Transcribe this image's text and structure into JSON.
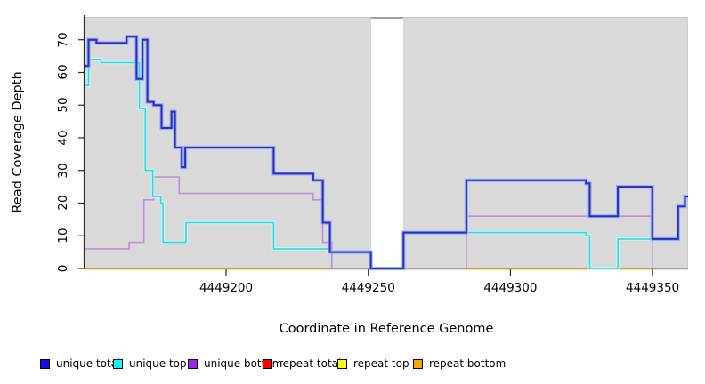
{
  "chart_data": {
    "type": "line",
    "subtype": "step-coverage",
    "title": "",
    "xlabel": "Coordinate in Reference Genome",
    "ylabel": "Read Coverage Depth",
    "xlim": [
      4449150.2,
      4449362.5
    ],
    "ylim": [
      0,
      77
    ],
    "grid": false,
    "background_color": "#d9d9d9",
    "gap_region": {
      "x_start": 4449250.9,
      "x_end": 4449262.4,
      "color": "#ffffff"
    },
    "x_ticks": [
      {
        "label": "4449200",
        "value": 4449200
      },
      {
        "label": "4449250",
        "value": 4449250
      },
      {
        "label": "4449300",
        "value": 4449300
      },
      {
        "label": "4449350",
        "value": 4449350
      }
    ],
    "y_ticks": [
      {
        "label": "0",
        "value": 0
      },
      {
        "label": "10",
        "value": 10
      },
      {
        "label": "20",
        "value": 20
      },
      {
        "label": "30",
        "value": 30
      },
      {
        "label": "40",
        "value": 40
      },
      {
        "label": "50",
        "value": 50
      },
      {
        "label": "60",
        "value": 60
      },
      {
        "label": "70",
        "value": 70
      }
    ],
    "series": [
      {
        "name": "repeat total",
        "color": "#d42a2a",
        "halo": null,
        "width": 1.3,
        "points": [
          [
            4449150.2,
            0
          ],
          [
            4449362.5,
            0
          ]
        ]
      },
      {
        "name": "repeat top",
        "color": "#f2e33c",
        "halo": null,
        "width": 1.1,
        "points": [
          [
            4449150.2,
            0
          ],
          [
            4449362.5,
            0
          ]
        ]
      },
      {
        "name": "repeat bottom",
        "color": "#ffa500",
        "halo": null,
        "width": 1.8,
        "points": [
          [
            4449150.2,
            0
          ],
          [
            4449362.5,
            0
          ]
        ]
      },
      {
        "name": "unique bottom",
        "color": "#be8fd9",
        "halo": null,
        "width": 1.6,
        "points": [
          [
            4449150.2,
            6
          ],
          [
            4449165.9,
            8
          ],
          [
            4449171.1,
            21
          ],
          [
            4449174.5,
            28
          ],
          [
            4449183.5,
            23
          ],
          [
            4449230.6,
            21
          ],
          [
            4449234.0,
            8
          ],
          [
            4449237.2,
            0
          ],
          [
            4449284.5,
            16
          ],
          [
            4449349.9,
            0
          ],
          [
            4449362.5,
            0
          ]
        ]
      },
      {
        "name": "unique top",
        "color": "#2fd9e0",
        "halo": "#c8f7f7",
        "width": 1.6,
        "points": [
          [
            4449150.2,
            56
          ],
          [
            4449151.6,
            64
          ],
          [
            4449156.0,
            63
          ],
          [
            4449169.5,
            49
          ],
          [
            4449171.6,
            30
          ],
          [
            4449174.2,
            22
          ],
          [
            4449177.0,
            20
          ],
          [
            4449177.8,
            8
          ],
          [
            4449185.9,
            14
          ],
          [
            4449216.7,
            6
          ],
          [
            4449236.0,
            5
          ],
          [
            4449250.9,
            0
          ],
          [
            4449262.4,
            11
          ],
          [
            4449326.6,
            10
          ],
          [
            4449327.9,
            0
          ],
          [
            4449337.8,
            9
          ],
          [
            4449359.0,
            19
          ],
          [
            4449361.4,
            22
          ],
          [
            4449362.5,
            22
          ]
        ]
      },
      {
        "name": "unique total",
        "color": "#2b2bc8",
        "halo": "#8fa9ec",
        "width": 2.0,
        "points": [
          [
            4449150.2,
            62
          ],
          [
            4449151.6,
            70
          ],
          [
            4449154.4,
            69
          ],
          [
            4449165.0,
            71
          ],
          [
            4449168.5,
            58
          ],
          [
            4449170.6,
            70
          ],
          [
            4449172.3,
            51
          ],
          [
            4449174.5,
            50
          ],
          [
            4449177.3,
            43
          ],
          [
            4449180.8,
            48
          ],
          [
            4449182.0,
            37
          ],
          [
            4449184.4,
            31
          ],
          [
            4449185.6,
            37
          ],
          [
            4449216.7,
            29
          ],
          [
            4449230.6,
            27
          ],
          [
            4449234.0,
            14
          ],
          [
            4449236.5,
            5
          ],
          [
            4449250.9,
            0
          ],
          [
            4449262.4,
            11
          ],
          [
            4449284.5,
            27
          ],
          [
            4449326.6,
            26
          ],
          [
            4449327.9,
            16
          ],
          [
            4449337.8,
            25
          ],
          [
            4449349.9,
            9
          ],
          [
            4449359.0,
            19
          ],
          [
            4449361.4,
            22
          ],
          [
            4449362.5,
            22
          ]
        ]
      }
    ],
    "legend": {
      "position": "bottom",
      "entries": [
        {
          "label": "unique total",
          "color": "#0f0fee"
        },
        {
          "label": "unique top",
          "color": "#00ffff"
        },
        {
          "label": "unique bottom",
          "color": "#a020f0"
        },
        {
          "label": "repeat total",
          "color": "#ff0000"
        },
        {
          "label": "repeat top",
          "color": "#ffff00"
        },
        {
          "label": "repeat bottom",
          "color": "#ffa500"
        }
      ]
    }
  },
  "labels": {
    "xlabel": "Coordinate in Reference Genome",
    "ylabel": "Read Coverage Depth"
  }
}
